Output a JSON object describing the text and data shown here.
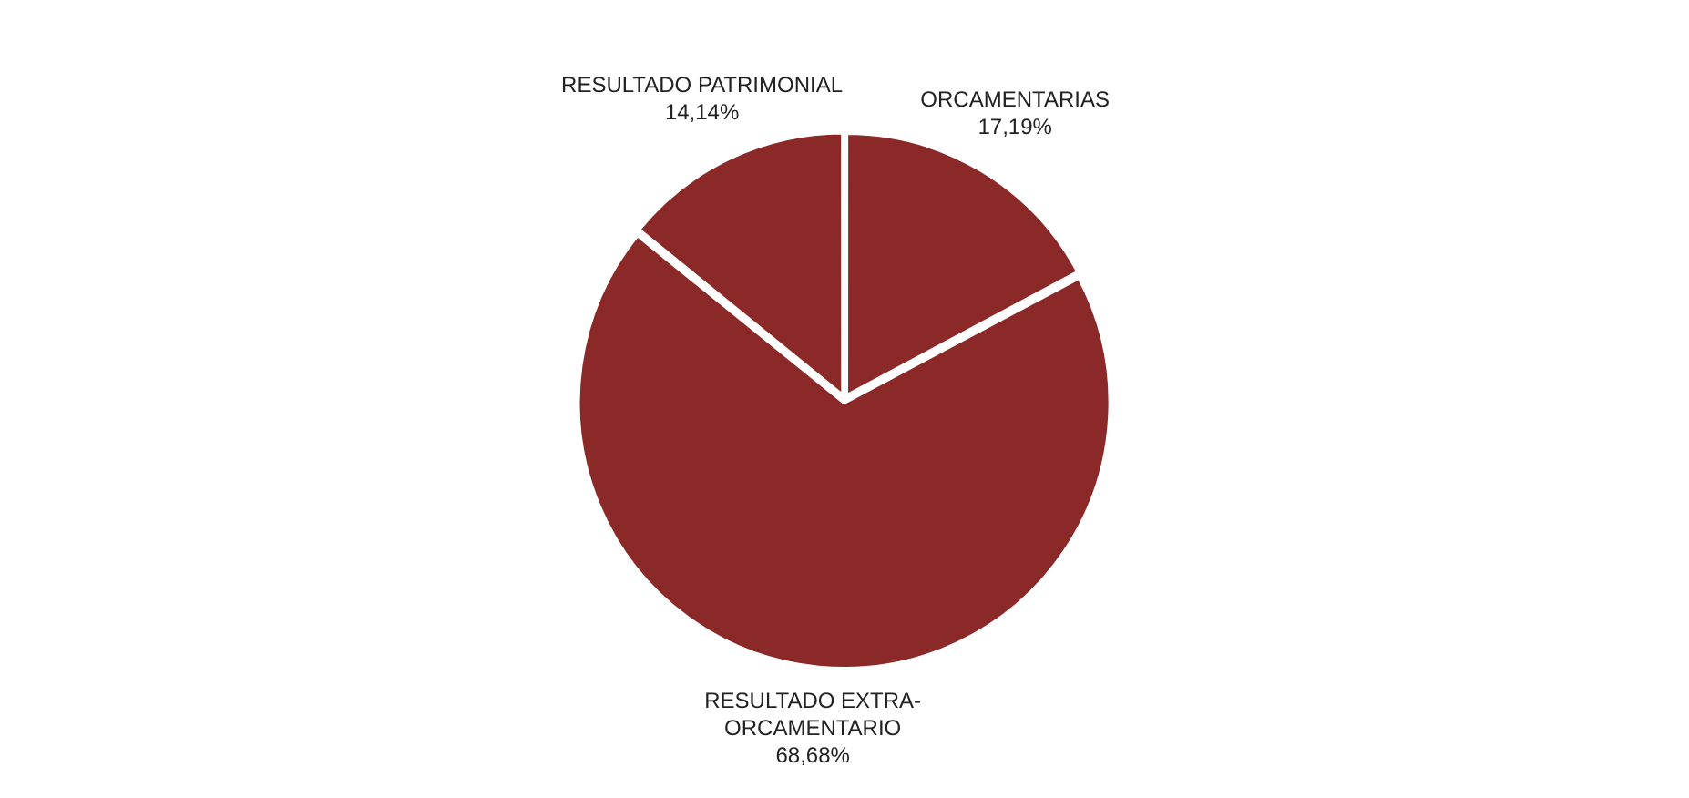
{
  "chart_data": {
    "type": "pie",
    "categories": [
      "ORCAMENTARIAS",
      "RESULTADO EXTRA-ORCAMENTARIO",
      "RESULTADO PATRIMONIAL"
    ],
    "values": [
      17.19,
      68.68,
      14.14
    ],
    "colors": [
      "#8b2828",
      "#8b2828",
      "#8b2828"
    ],
    "value_labels": [
      "17,19%",
      "68,68%",
      "14,14%"
    ],
    "legend": false
  }
}
